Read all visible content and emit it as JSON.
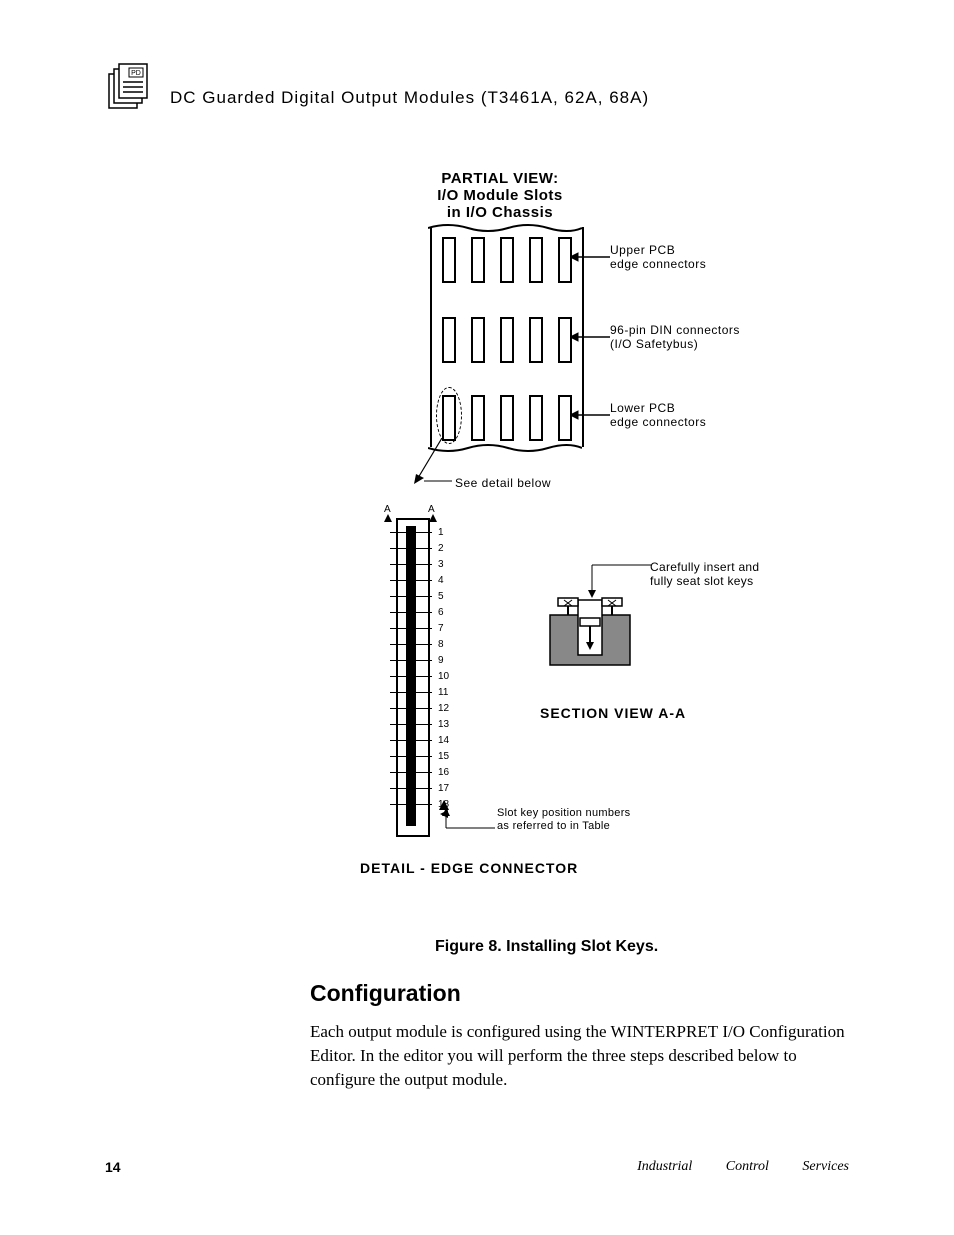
{
  "header": {
    "icon_label": "PD",
    "title": "DC Guarded Digital Output Modules (T3461A, 62A, 68A)"
  },
  "figure": {
    "partial_view_title_l1": "PARTIAL VIEW:",
    "partial_view_title_l2": "I/O Module Slots",
    "partial_view_title_l3": "in I/O Chassis",
    "chassis": {
      "slots_per_row": 5,
      "label_upper_l1": "Upper PCB",
      "label_upper_l2": "edge connectors",
      "label_mid_l1": "96-pin DIN connectors",
      "label_mid_l2": "(I/O Safetybus)",
      "label_lower_l1": "Lower PCB",
      "label_lower_l2": "edge connectors"
    },
    "see_detail": "See detail below",
    "edge_detail": {
      "tick_count": 18,
      "A_left": "A",
      "A_right": "A",
      "title": "DETAIL - EDGE CONNECTOR"
    },
    "section": {
      "title": "SECTION VIEW    A-A",
      "label_l1": "Carefully insert and",
      "label_l2": "fully seat slot keys"
    },
    "slotkey": {
      "l1": "Slot key position numbers",
      "l2": "as referred to in Table"
    },
    "caption": "Figure 8.  Installing Slot Keys.",
    "colors": {
      "stroke": "#000000",
      "fill_gray": "#888888",
      "bg": "#ffffff"
    }
  },
  "config": {
    "heading": "Configuration",
    "para_pre": "Each output module is configured using the W",
    "para_sc": "INTERPRET",
    "para_post": " I/O Configuration Editor.  In the editor you will perform the three steps described below to configure the output module."
  },
  "footer": {
    "page": "14",
    "right": "Industrial Control Services"
  }
}
